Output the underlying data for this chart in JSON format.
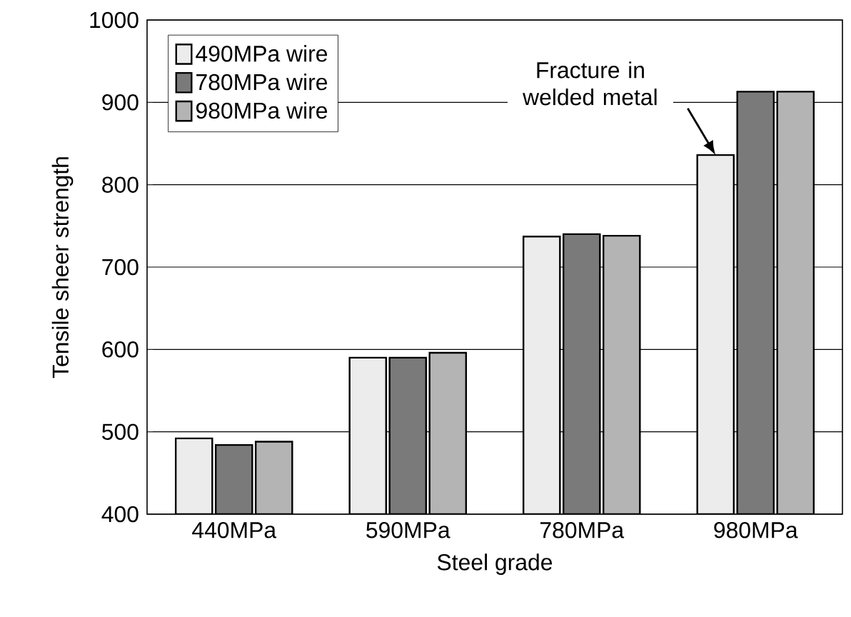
{
  "chart_data": {
    "type": "bar",
    "xlabel": "Steel grade",
    "ylabel": "Tensile sheer strength",
    "categories": [
      "440MPa",
      "590MPa",
      "780MPa",
      "980MPa"
    ],
    "series": [
      {
        "name": "490MPa wire",
        "color": "#ececec",
        "values": [
          492,
          590,
          737,
          836
        ]
      },
      {
        "name": "780MPa wire",
        "color": "#7a7a7a",
        "values": [
          484,
          590,
          740,
          913
        ]
      },
      {
        "name": "980MPa wire",
        "color": "#b4b4b4",
        "values": [
          488,
          596,
          738,
          913
        ]
      }
    ],
    "ylim": [
      400,
      1000
    ],
    "yticks": [
      400,
      500,
      600,
      700,
      800,
      900,
      1000
    ],
    "grid": "y",
    "legend": "top left",
    "annotations": [
      "Fracture in welded metal"
    ]
  }
}
